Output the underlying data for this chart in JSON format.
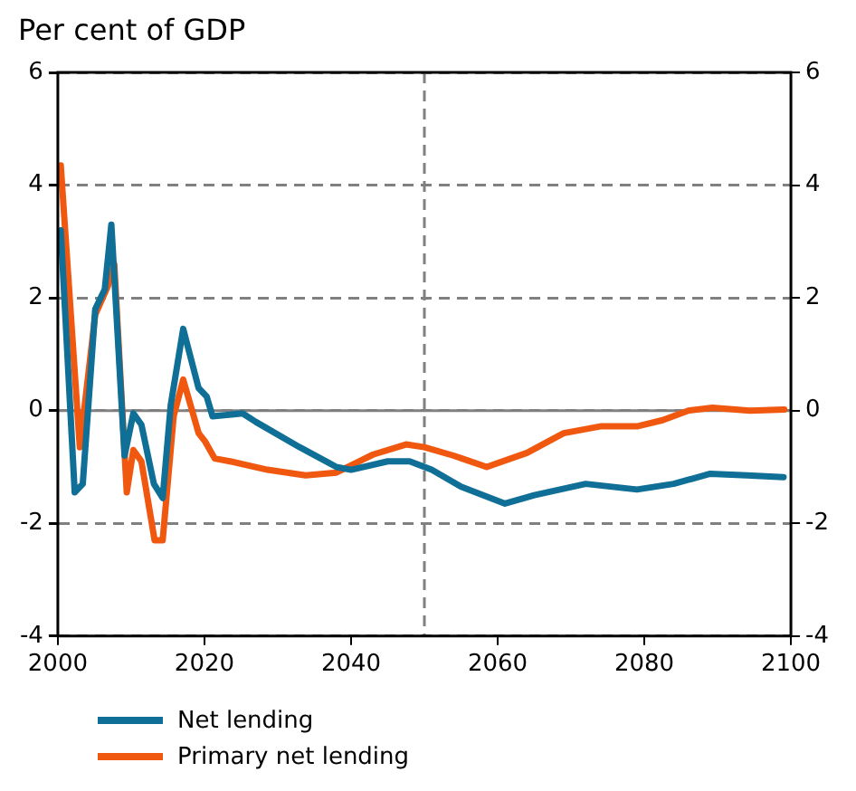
{
  "chart_data": {
    "type": "line",
    "title": "Per cent of GDP",
    "xlim": [
      2000,
      2100
    ],
    "xticks": [
      2000,
      2020,
      2040,
      2060,
      2080,
      2100
    ],
    "ylim": [
      -4,
      6
    ],
    "yticks": [
      -4,
      -2,
      0,
      2,
      4,
      6
    ],
    "y2lim": [
      -4,
      6
    ],
    "y2ticks": [
      -4,
      -2,
      0,
      2,
      4,
      6
    ],
    "grid": "y",
    "legend": "bottom",
    "marker": "none",
    "line_style": "solid",
    "ref_lines": [
      {
        "axis": "x",
        "value": 2050,
        "color": "#808080",
        "line_style": "dashed"
      },
      {
        "axis": "y",
        "value": 0,
        "color": "#808080",
        "line_style": "solid"
      }
    ],
    "series": [
      {
        "name": "Net lending",
        "color": "#0f6f96",
        "x": [
          2000.4,
          2002.3,
          2003.4,
          2005.1,
          2006.4,
          2007.3,
          2009.1,
          2010.3,
          2011.4,
          2013.1,
          2014.3,
          2015.4,
          2017.1,
          2019.2,
          2020.3,
          2021.1,
          2025.2,
          2027,
          2033,
          2038,
          2040,
          2045,
          2048,
          2051,
          2055,
          2061,
          2065,
          2072,
          2079,
          2084,
          2089,
          2094,
          2099
        ],
        "values": [
          3.2,
          -1.45,
          -1.3,
          1.8,
          2.15,
          3.3,
          -0.8,
          -0.05,
          -0.25,
          -1.3,
          -1.55,
          0.1,
          1.45,
          0.4,
          0.25,
          -0.1,
          -0.05,
          -0.2,
          -0.65,
          -1.0,
          -1.05,
          -0.9,
          -0.9,
          -1.05,
          -1.35,
          -1.65,
          -1.5,
          -1.3,
          -1.4,
          -1.3,
          -1.12,
          -1.15,
          -1.18
        ]
      },
      {
        "name": "Primary net lending",
        "color": "#f0570f",
        "x": [
          2000.4,
          2003,
          2005.1,
          2006.8,
          2007.7,
          2009.4,
          2010.3,
          2011.4,
          2013.2,
          2014.3,
          2015.8,
          2017.1,
          2019.2,
          2020.1,
          2021.4,
          2023.5,
          2028.6,
          2033.8,
          2038,
          2043,
          2047.5,
          2050,
          2054,
          2058.5,
          2064,
          2069,
          2074,
          2079,
          2082.5,
          2086,
          2089.3,
          2094.4,
          2099.1
        ],
        "values": [
          4.35,
          -0.65,
          1.7,
          2.2,
          2.6,
          -1.45,
          -0.7,
          -0.9,
          -2.3,
          -2.3,
          -0.1,
          0.55,
          -0.4,
          -0.55,
          -0.85,
          -0.9,
          -1.05,
          -1.15,
          -1.1,
          -0.78,
          -0.6,
          -0.65,
          -0.8,
          -1.0,
          -0.75,
          -0.4,
          -0.28,
          -0.28,
          -0.17,
          0.0,
          0.05,
          0.0,
          0.02
        ]
      }
    ]
  }
}
